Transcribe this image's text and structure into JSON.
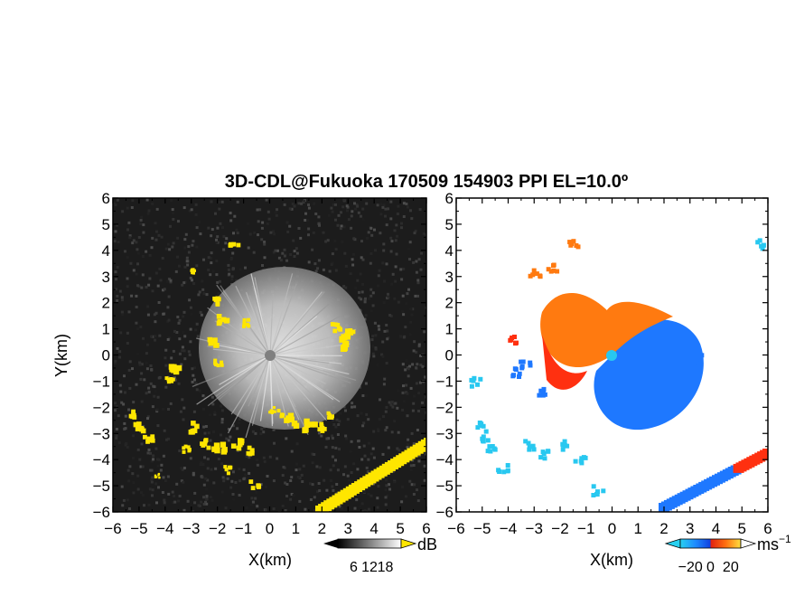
{
  "chart_data": [
    {
      "type": "heatmap",
      "panel": "reflectivity",
      "title": "3D-CDL@Fukuoka 170509 154903 PPI EL=10.0º",
      "xlabel": "X(km)",
      "ylabel": "Y(km)",
      "xlim": [
        -6,
        6
      ],
      "ylim": [
        -6,
        6
      ],
      "xticks": [
        "−6",
        "−5",
        "−4",
        "−3",
        "−2",
        "−1",
        "0",
        "1",
        "2",
        "3",
        "4",
        "5",
        "6"
      ],
      "yticks": [
        "−6",
        "−5",
        "−4",
        "−3",
        "−2",
        "−1",
        "0",
        "1",
        "2",
        "3",
        "4",
        "5",
        "6"
      ],
      "colorbar": {
        "label": "dB",
        "ticks": [
          "6",
          "12",
          "18"
        ],
        "range": [
          0,
          24
        ]
      },
      "colors": {
        "background": "#1c1c1c",
        "echo": "#d8d8d8",
        "highlight": "#ffe600",
        "center": "#808080"
      }
    },
    {
      "type": "heatmap",
      "panel": "doppler-velocity",
      "xlabel": "X(km)",
      "xlim": [
        -6,
        6
      ],
      "ylim": [
        -6,
        6
      ],
      "xticks": [
        "−6",
        "−5",
        "−4",
        "−3",
        "−2",
        "−1",
        "0",
        "1",
        "2",
        "3",
        "4",
        "5",
        "6"
      ],
      "yticks": [
        "−6",
        "−5",
        "−4",
        "−3",
        "−2",
        "−1",
        "0",
        "1",
        "2",
        "3",
        "4",
        "5",
        "6"
      ],
      "colorbar": {
        "label": "ms",
        "label_sup": "−1",
        "ticks": [
          "−20",
          "0",
          "20"
        ],
        "range": [
          -30,
          30
        ]
      },
      "colors": {
        "approaching": "#1e78ff",
        "receding": "#ff7a10",
        "strong_receding": "#ff3010",
        "light_blue": "#28c8f0"
      }
    }
  ]
}
